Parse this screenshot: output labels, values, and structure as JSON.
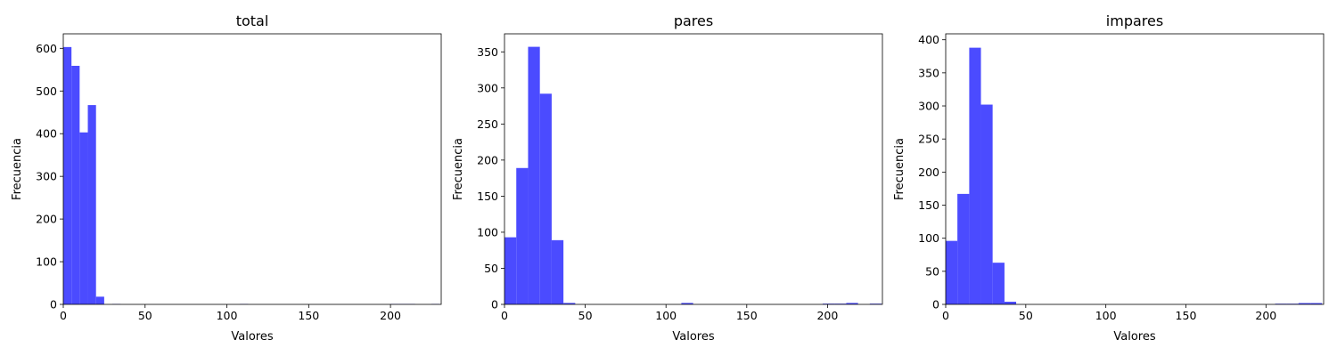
{
  "chart_data": [
    {
      "type": "bar",
      "title": "total",
      "xlabel": "Valores",
      "ylabel": "Frecuencia",
      "xlim": [
        0,
        231
      ],
      "ylim": [
        0,
        634
      ],
      "xticks": [
        0,
        50,
        100,
        150,
        200
      ],
      "yticks": [
        0,
        100,
        200,
        300,
        400,
        500,
        600
      ],
      "bar_color": "#4b4bff",
      "bins": [
        {
          "x0": 0,
          "x1": 5,
          "count": 603
        },
        {
          "x0": 5,
          "x1": 10,
          "count": 559
        },
        {
          "x0": 10,
          "x1": 15,
          "count": 403
        },
        {
          "x0": 15,
          "x1": 20,
          "count": 467
        },
        {
          "x0": 20,
          "x1": 25,
          "count": 18
        },
        {
          "x0": 30,
          "x1": 35,
          "count": 1
        },
        {
          "x0": 108,
          "x1": 113,
          "count": 1
        },
        {
          "x0": 200,
          "x1": 205,
          "count": 1
        },
        {
          "x0": 205,
          "x1": 210,
          "count": 1
        },
        {
          "x0": 210,
          "x1": 215,
          "count": 1
        },
        {
          "x0": 225,
          "x1": 230,
          "count": 1
        }
      ]
    },
    {
      "type": "bar",
      "title": "pares",
      "xlabel": "Valores",
      "ylabel": "Frecuencia",
      "xlim": [
        0,
        234
      ],
      "ylim": [
        0,
        375
      ],
      "xticks": [
        0,
        50,
        100,
        150,
        200
      ],
      "yticks": [
        0,
        50,
        100,
        150,
        200,
        250,
        300,
        350
      ],
      "bar_color": "#4b4bff",
      "bins": [
        {
          "x0": 0,
          "x1": 7.3,
          "count": 93
        },
        {
          "x0": 7.3,
          "x1": 14.6,
          "count": 189
        },
        {
          "x0": 14.6,
          "x1": 21.9,
          "count": 357
        },
        {
          "x0": 21.9,
          "x1": 29.2,
          "count": 292
        },
        {
          "x0": 29.2,
          "x1": 36.5,
          "count": 89
        },
        {
          "x0": 36.5,
          "x1": 43.8,
          "count": 2
        },
        {
          "x0": 109.5,
          "x1": 116.8,
          "count": 2
        },
        {
          "x0": 197,
          "x1": 204.3,
          "count": 1
        },
        {
          "x0": 204.3,
          "x1": 211.6,
          "count": 1
        },
        {
          "x0": 211.6,
          "x1": 218.9,
          "count": 2
        },
        {
          "x0": 226.2,
          "x1": 233.5,
          "count": 1
        }
      ]
    },
    {
      "type": "bar",
      "title": "impares",
      "xlabel": "Valores",
      "ylabel": "Frecuencia",
      "xlim": [
        0,
        236
      ],
      "ylim": [
        0,
        409
      ],
      "xticks": [
        0,
        50,
        100,
        150,
        200
      ],
      "yticks": [
        0,
        50,
        100,
        150,
        200,
        250,
        300,
        350,
        400
      ],
      "bar_color": "#4b4bff",
      "bins": [
        {
          "x0": 0,
          "x1": 7.3,
          "count": 96
        },
        {
          "x0": 7.3,
          "x1": 14.7,
          "count": 167
        },
        {
          "x0": 14.7,
          "x1": 22,
          "count": 388
        },
        {
          "x0": 22,
          "x1": 29.3,
          "count": 302
        },
        {
          "x0": 29.3,
          "x1": 36.7,
          "count": 63
        },
        {
          "x0": 36.7,
          "x1": 44,
          "count": 4
        },
        {
          "x0": 205.7,
          "x1": 213,
          "count": 1
        },
        {
          "x0": 213,
          "x1": 220.3,
          "count": 1
        },
        {
          "x0": 220.3,
          "x1": 227.7,
          "count": 2
        },
        {
          "x0": 227.7,
          "x1": 235,
          "count": 2
        }
      ]
    }
  ]
}
